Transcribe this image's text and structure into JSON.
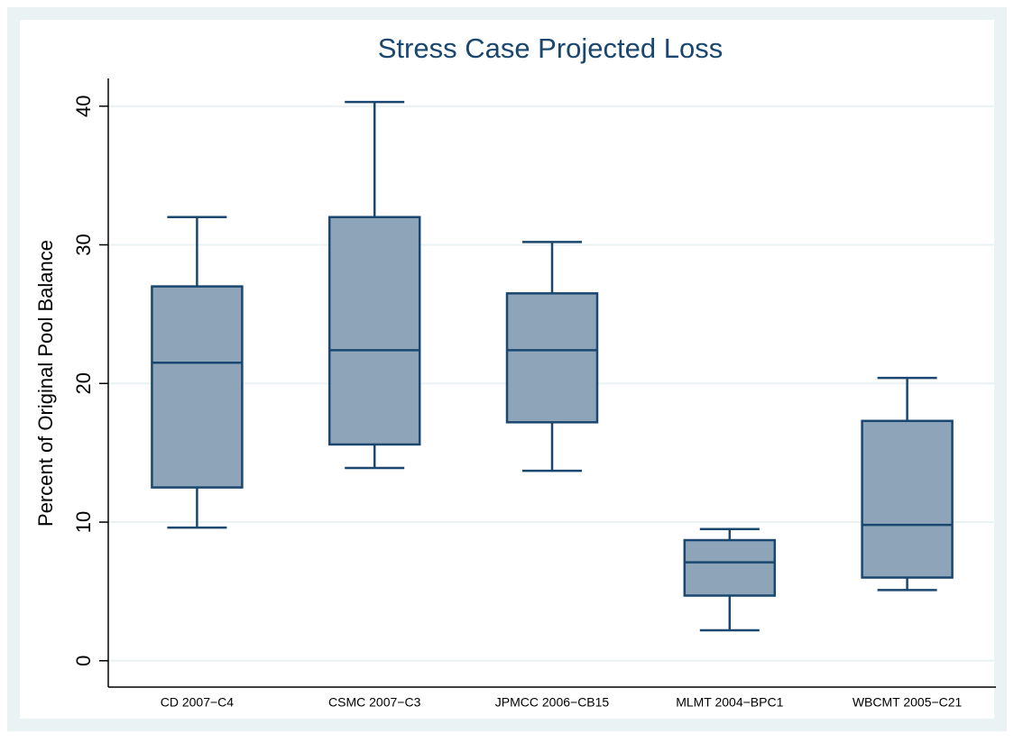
{
  "chart_data": {
    "type": "box",
    "title": "Stress Case Projected Loss",
    "y_label": "Percent of Original Pool Balance",
    "categories": [
      "CD 2007−C4",
      "CSMC 2007−C3",
      "JPMCC 2006−CB15",
      "MLMT 2004−BPC1",
      "WBCMT 2005−C21"
    ],
    "min": [
      9.6,
      13.9,
      13.7,
      2.2,
      5.1
    ],
    "q1": [
      12.5,
      15.6,
      17.2,
      4.7,
      6.0
    ],
    "median": [
      21.5,
      22.4,
      22.4,
      7.1,
      9.8
    ],
    "q3": [
      27.0,
      32.0,
      26.5,
      8.7,
      17.3
    ],
    "max": [
      32.0,
      40.3,
      30.2,
      9.5,
      20.4
    ],
    "color": "#8ea4b9",
    "line_color": "#1a476f",
    "ylim": [
      -1.9,
      42
    ],
    "yticks": [
      0,
      10,
      20,
      30,
      40
    ],
    "grid": true
  }
}
